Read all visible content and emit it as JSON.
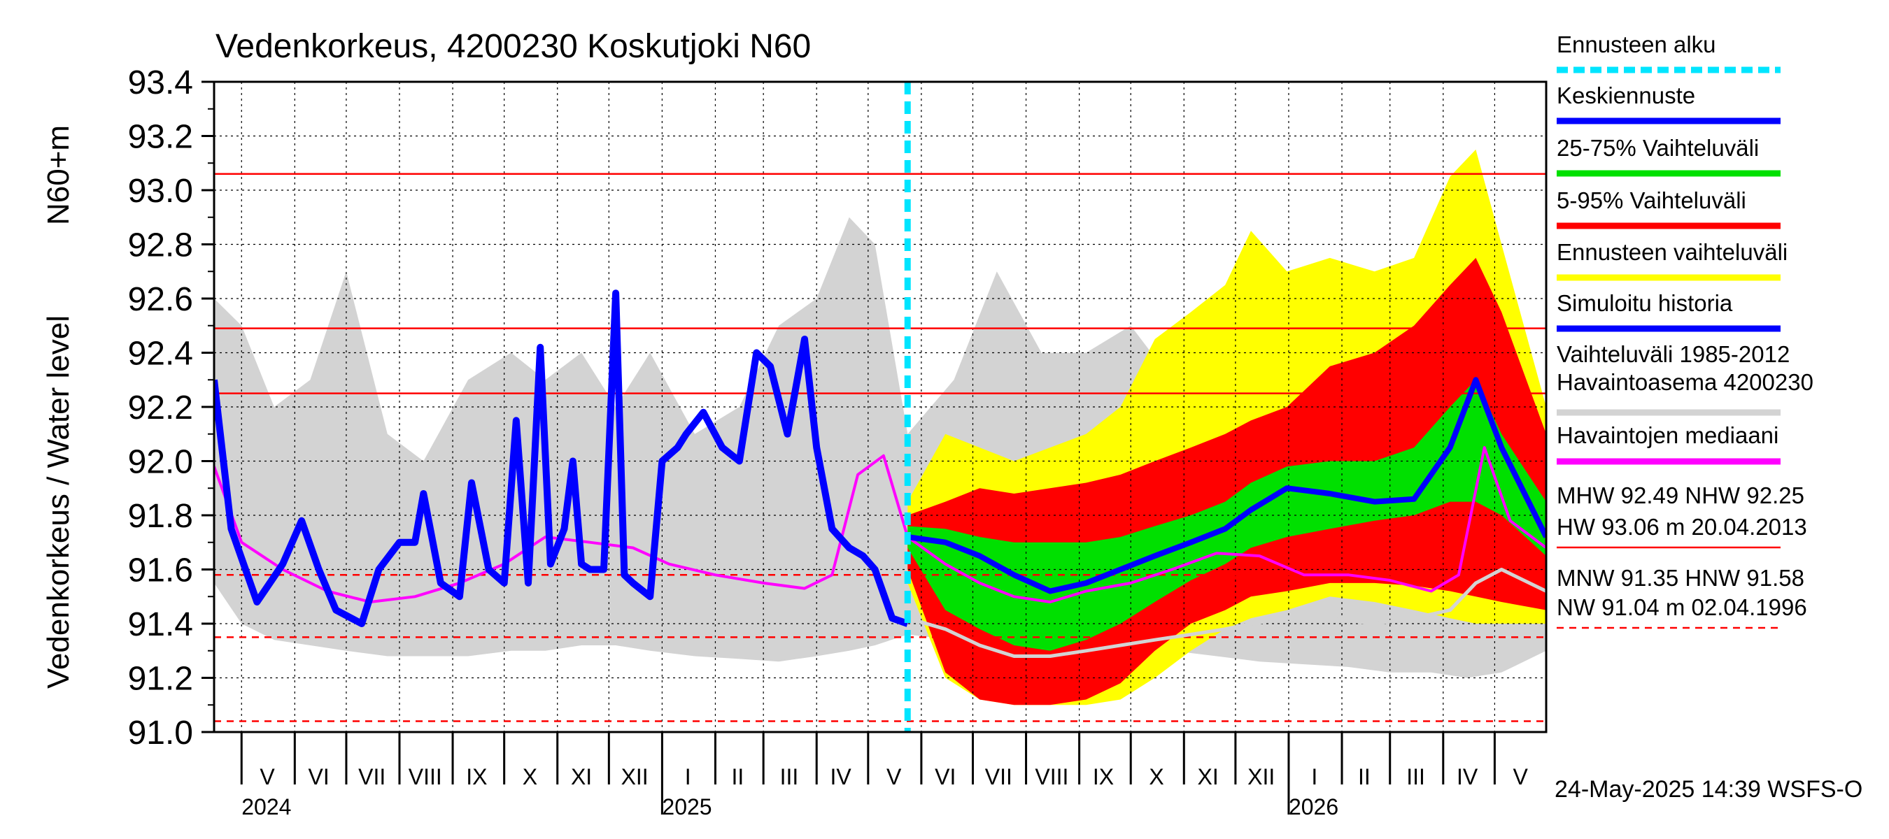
{
  "chart_data": {
    "type": "line",
    "title": "Vedenkorkeus, 4200230 Koskutjoki N60",
    "ylabel_top": "N60+m",
    "ylabel": "Vedenkorkeus / Water level",
    "ylim": [
      91.0,
      93.4
    ],
    "yticks": [
      "91.0",
      "91.2",
      "91.4",
      "91.6",
      "91.8",
      "92.0",
      "92.2",
      "92.4",
      "92.6",
      "92.8",
      "93.0",
      "93.2",
      "93.4"
    ],
    "x_start": "2024-04-15",
    "x_end": "2026-05-31",
    "forecast_start": "2025-05-24",
    "month_labels": [
      {
        "label": "V",
        "date": "2024-05-16"
      },
      {
        "label": "VI",
        "date": "2024-06-15"
      },
      {
        "label": "VII",
        "date": "2024-07-16"
      },
      {
        "label": "VIII",
        "date": "2024-08-16"
      },
      {
        "label": "IX",
        "date": "2024-09-15"
      },
      {
        "label": "X",
        "date": "2024-10-16"
      },
      {
        "label": "XI",
        "date": "2024-11-15"
      },
      {
        "label": "XII",
        "date": "2024-12-16"
      },
      {
        "label": "I",
        "date": "2025-01-16"
      },
      {
        "label": "II",
        "date": "2025-02-14"
      },
      {
        "label": "III",
        "date": "2025-03-16"
      },
      {
        "label": "IV",
        "date": "2025-04-15"
      },
      {
        "label": "V",
        "date": "2025-05-16"
      },
      {
        "label": "VI",
        "date": "2025-06-15"
      },
      {
        "label": "VII",
        "date": "2025-07-16"
      },
      {
        "label": "VIII",
        "date": "2025-08-16"
      },
      {
        "label": "IX",
        "date": "2025-09-15"
      },
      {
        "label": "X",
        "date": "2025-10-16"
      },
      {
        "label": "XI",
        "date": "2025-11-15"
      },
      {
        "label": "XII",
        "date": "2025-12-16"
      },
      {
        "label": "I",
        "date": "2026-01-16"
      },
      {
        "label": "II",
        "date": "2026-02-14"
      },
      {
        "label": "III",
        "date": "2026-03-16"
      },
      {
        "label": "IV",
        "date": "2026-04-15"
      },
      {
        "label": "V",
        "date": "2026-05-16"
      }
    ],
    "year_labels": [
      {
        "label": "2024",
        "date": "2024-05-01"
      },
      {
        "label": "2025",
        "date": "2025-01-01"
      },
      {
        "label": "2026",
        "date": "2026-01-01"
      }
    ],
    "reference_lines": [
      {
        "name": "HW",
        "value": 93.06,
        "style": "solid"
      },
      {
        "name": "MHW",
        "value": 92.49,
        "style": "solid"
      },
      {
        "name": "NHW",
        "value": 92.25,
        "style": "solid"
      },
      {
        "name": "HNW",
        "value": 91.58,
        "style": "dashed"
      },
      {
        "name": "MNW",
        "value": 91.35,
        "style": "dashed"
      },
      {
        "name": "NW",
        "value": 91.04,
        "style": "dashed"
      }
    ],
    "series": [
      {
        "name": "Vaihteluväli 1985-2012 Havaintoasema 4200230",
        "kind": "band",
        "color": "#d3d3d3",
        "x": [
          "2024-04-15",
          "2024-05-01",
          "2024-05-20",
          "2024-06-10",
          "2024-07-01",
          "2024-07-25",
          "2024-08-15",
          "2024-09-10",
          "2024-10-05",
          "2024-10-25",
          "2024-11-15",
          "2024-12-05",
          "2024-12-25",
          "2025-01-20",
          "2025-02-15",
          "2025-03-10",
          "2025-04-01",
          "2025-04-20",
          "2025-05-05",
          "2025-05-24",
          "2025-06-20",
          "2025-07-15",
          "2025-08-10",
          "2025-09-05",
          "2025-10-01",
          "2025-10-25",
          "2025-11-20",
          "2025-12-15",
          "2026-01-10",
          "2026-02-05",
          "2026-03-01",
          "2026-03-25",
          "2026-04-15",
          "2026-05-05",
          "2026-05-31"
        ],
        "low": [
          91.55,
          91.4,
          91.34,
          91.32,
          91.3,
          91.28,
          91.28,
          91.28,
          91.3,
          91.3,
          91.32,
          91.32,
          91.3,
          91.28,
          91.27,
          91.26,
          91.28,
          91.3,
          91.32,
          91.36,
          91.34,
          91.32,
          91.3,
          91.28,
          91.28,
          91.3,
          91.28,
          91.26,
          91.25,
          91.24,
          91.22,
          91.22,
          91.2,
          91.22,
          91.3
        ],
        "high": [
          92.6,
          92.5,
          92.2,
          92.3,
          92.7,
          92.1,
          92.0,
          92.3,
          92.4,
          92.3,
          92.4,
          92.2,
          92.4,
          92.1,
          92.2,
          92.5,
          92.6,
          92.9,
          92.8,
          92.1,
          92.3,
          92.7,
          92.4,
          92.4,
          92.5,
          92.3,
          92.6,
          92.4,
          92.3,
          92.4,
          92.4,
          92.8,
          93.0,
          92.6,
          92.1
        ]
      },
      {
        "name": "Ennusteen vaihteluväli",
        "kind": "band",
        "color": "#ffff00",
        "x": [
          "2025-05-24",
          "2025-06-15",
          "2025-07-05",
          "2025-07-25",
          "2025-08-15",
          "2025-09-05",
          "2025-09-25",
          "2025-10-15",
          "2025-11-05",
          "2025-11-25",
          "2025-12-10",
          "2025-12-31",
          "2026-01-25",
          "2026-02-20",
          "2026-03-15",
          "2026-04-05",
          "2026-04-20",
          "2026-05-05",
          "2026-05-31"
        ],
        "low": [
          91.55,
          91.2,
          91.12,
          91.1,
          91.1,
          91.1,
          91.12,
          91.2,
          91.3,
          91.38,
          91.42,
          91.45,
          91.5,
          91.48,
          91.45,
          91.42,
          91.4,
          91.4,
          91.4
        ],
        "high": [
          91.85,
          92.1,
          92.05,
          92.0,
          92.05,
          92.1,
          92.2,
          92.45,
          92.55,
          92.65,
          92.85,
          92.7,
          92.75,
          92.7,
          92.75,
          93.05,
          93.15,
          92.8,
          92.2
        ]
      },
      {
        "name": "5-95% Vaihteluväli",
        "kind": "band",
        "color": "#ff0000",
        "x": [
          "2025-05-24",
          "2025-06-15",
          "2025-07-05",
          "2025-07-25",
          "2025-08-15",
          "2025-09-05",
          "2025-09-25",
          "2025-10-15",
          "2025-11-05",
          "2025-11-25",
          "2025-12-10",
          "2025-12-31",
          "2026-01-25",
          "2026-02-20",
          "2026-03-15",
          "2026-04-05",
          "2026-04-20",
          "2026-05-05",
          "2026-05-31"
        ],
        "low": [
          91.6,
          91.22,
          91.12,
          91.1,
          91.1,
          91.12,
          91.18,
          91.3,
          91.4,
          91.45,
          91.5,
          91.52,
          91.55,
          91.55,
          91.54,
          91.52,
          91.5,
          91.48,
          91.45
        ],
        "high": [
          91.8,
          91.85,
          91.9,
          91.88,
          91.9,
          91.92,
          91.95,
          92.0,
          92.05,
          92.1,
          92.15,
          92.2,
          92.35,
          92.4,
          92.5,
          92.65,
          92.75,
          92.55,
          92.1
        ]
      },
      {
        "name": "25-75% Vaihteluväli",
        "kind": "band",
        "color": "#00e000",
        "x": [
          "2025-05-24",
          "2025-06-15",
          "2025-07-05",
          "2025-07-25",
          "2025-08-15",
          "2025-09-05",
          "2025-09-25",
          "2025-10-15",
          "2025-11-05",
          "2025-11-25",
          "2025-12-10",
          "2025-12-31",
          "2026-01-25",
          "2026-02-20",
          "2026-03-15",
          "2026-04-05",
          "2026-04-20",
          "2026-05-05",
          "2026-05-31"
        ],
        "low": [
          91.68,
          91.45,
          91.38,
          91.32,
          91.3,
          91.34,
          91.4,
          91.48,
          91.56,
          91.62,
          91.68,
          91.72,
          91.75,
          91.78,
          91.8,
          91.85,
          91.85,
          91.8,
          91.65
        ],
        "high": [
          91.76,
          91.75,
          91.72,
          91.7,
          91.7,
          91.7,
          91.72,
          91.76,
          91.8,
          91.85,
          91.92,
          91.98,
          92.0,
          92.0,
          92.05,
          92.2,
          92.3,
          92.1,
          91.85
        ]
      },
      {
        "name": "Havaintojen mediaani",
        "kind": "line",
        "color": "#ff00ff",
        "x": [
          "2024-04-15",
          "2024-05-01",
          "2024-05-25",
          "2024-06-20",
          "2024-07-15",
          "2024-08-10",
          "2024-09-05",
          "2024-10-01",
          "2024-10-25",
          "2024-11-20",
          "2024-12-15",
          "2025-01-05",
          "2025-02-01",
          "2025-03-01",
          "2025-03-25",
          "2025-04-10",
          "2025-04-25",
          "2025-05-10",
          "2025-05-24",
          "2025-06-15",
          "2025-07-05",
          "2025-07-25",
          "2025-08-15",
          "2025-09-05",
          "2025-10-01",
          "2025-10-25",
          "2025-11-20",
          "2025-12-15",
          "2026-01-10",
          "2026-02-05",
          "2026-03-01",
          "2026-03-25",
          "2026-04-10",
          "2026-04-25",
          "2026-05-10",
          "2026-05-31"
        ],
        "y": [
          91.98,
          91.7,
          91.6,
          91.52,
          91.48,
          91.5,
          91.55,
          91.62,
          91.72,
          91.7,
          91.68,
          91.62,
          91.58,
          91.55,
          91.53,
          91.58,
          91.95,
          92.02,
          91.72,
          91.62,
          91.55,
          91.5,
          91.48,
          91.52,
          91.55,
          91.6,
          91.66,
          91.65,
          91.58,
          91.58,
          91.56,
          91.52,
          91.58,
          92.05,
          91.78,
          91.68
        ]
      },
      {
        "name": "Simuloitu historia",
        "kind": "line",
        "color": "#0000ff",
        "x": [
          "2024-04-15",
          "2024-04-25",
          "2024-05-10",
          "2024-05-25",
          "2024-06-05",
          "2024-06-15",
          "2024-06-25",
          "2024-07-10",
          "2024-07-20",
          "2024-08-01",
          "2024-08-10",
          "2024-08-15",
          "2024-08-25",
          "2024-09-05",
          "2024-09-12",
          "2024-09-22",
          "2024-10-01",
          "2024-10-08",
          "2024-10-15",
          "2024-10-22",
          "2024-10-28",
          "2024-11-05",
          "2024-11-10",
          "2024-11-15",
          "2024-11-20",
          "2024-11-28",
          "2024-12-05",
          "2024-12-10",
          "2024-12-15",
          "2024-12-25",
          "2025-01-01",
          "2025-01-10",
          "2025-01-15",
          "2025-01-25",
          "2025-02-05",
          "2025-02-15",
          "2025-02-25",
          "2025-03-05",
          "2025-03-15",
          "2025-03-25",
          "2025-04-01",
          "2025-04-10",
          "2025-04-20",
          "2025-04-28",
          "2025-05-05",
          "2025-05-15",
          "2025-05-24"
        ],
        "y": [
          92.3,
          91.75,
          91.48,
          91.62,
          91.78,
          91.6,
          91.45,
          91.4,
          91.6,
          91.7,
          91.7,
          91.88,
          91.55,
          91.5,
          91.92,
          91.6,
          91.55,
          92.15,
          91.55,
          92.42,
          91.62,
          91.75,
          92.0,
          91.62,
          91.6,
          91.6,
          92.62,
          91.58,
          91.55,
          91.5,
          92.0,
          92.05,
          92.1,
          92.18,
          92.05,
          92.0,
          92.4,
          92.35,
          92.1,
          92.45,
          92.05,
          91.75,
          91.68,
          91.65,
          91.6,
          91.42,
          91.4
        ]
      },
      {
        "name": "Keskiennuste",
        "kind": "line",
        "color": "#0000ff",
        "x": [
          "2025-05-24",
          "2025-06-15",
          "2025-07-05",
          "2025-07-25",
          "2025-08-15",
          "2025-09-05",
          "2025-09-25",
          "2025-10-15",
          "2025-11-05",
          "2025-11-25",
          "2025-12-10",
          "2025-12-31",
          "2026-01-25",
          "2026-02-20",
          "2026-03-15",
          "2026-04-05",
          "2026-04-20",
          "2026-05-05",
          "2026-05-31"
        ],
        "y": [
          91.72,
          91.7,
          91.65,
          91.58,
          91.52,
          91.55,
          91.6,
          91.65,
          91.7,
          91.75,
          91.82,
          91.9,
          91.88,
          91.85,
          91.86,
          92.05,
          92.3,
          92.05,
          91.72
        ]
      },
      {
        "name": "Havaintoasema 4200230 (forecast)",
        "kind": "line",
        "color": "#d3d3d3",
        "x": [
          "2025-05-24",
          "2025-06-15",
          "2025-07-05",
          "2025-07-25",
          "2025-08-15",
          "2025-09-05",
          "2025-09-25",
          "2025-10-15",
          "2025-11-05",
          "2025-11-25",
          "2025-12-10",
          "2025-12-31",
          "2026-01-25",
          "2026-02-20",
          "2026-03-15",
          "2026-04-05",
          "2026-04-20",
          "2026-05-05",
          "2026-05-31"
        ],
        "y": [
          91.42,
          91.38,
          91.32,
          91.28,
          91.28,
          91.3,
          91.32,
          91.34,
          91.36,
          91.38,
          91.4,
          91.42,
          91.42,
          91.4,
          91.42,
          91.45,
          91.55,
          91.6,
          91.52
        ]
      }
    ]
  },
  "legend": {
    "items": [
      {
        "id": "forecast-start",
        "label": "Ennusteen alku",
        "color": "#00e5ff",
        "style": "dashed"
      },
      {
        "id": "mean-forecast",
        "label": "Keskiennuste",
        "color": "#0000ff",
        "style": "solid"
      },
      {
        "id": "band-25-75",
        "label": "25-75% Vaihteluväli",
        "color": "#00e000",
        "style": "solid"
      },
      {
        "id": "band-5-95",
        "label": "5-95% Vaihteluväli",
        "color": "#ff0000",
        "style": "solid"
      },
      {
        "id": "forecast-range",
        "label": "Ennusteen vaihteluväli",
        "color": "#ffff00",
        "style": "solid"
      },
      {
        "id": "simulated-history",
        "label": "Simuloitu historia",
        "color": "#0000ff",
        "style": "solid"
      },
      {
        "id": "range-1985-2012",
        "label": "Vaihteluväli 1985-2012",
        "label2": " Havaintoasema 4200230",
        "color": "#d3d3d3",
        "style": "solid"
      },
      {
        "id": "median",
        "label": "Havaintojen mediaani",
        "color": "#ff00ff",
        "style": "solid"
      }
    ],
    "stats": {
      "line1": "MHW  92.49 NHW  92.25",
      "line2": "HW  93.06 m 20.04.2013",
      "line3": "MNW  91.35 HNW  91.58",
      "line4": "NW  91.04 m 02.04.1996"
    }
  },
  "footer": "24-May-2025 14:39 WSFS-O",
  "colors": {
    "hw_line": "#ff0000",
    "grid": "#000000",
    "forecast_start": "#00e5ff"
  }
}
